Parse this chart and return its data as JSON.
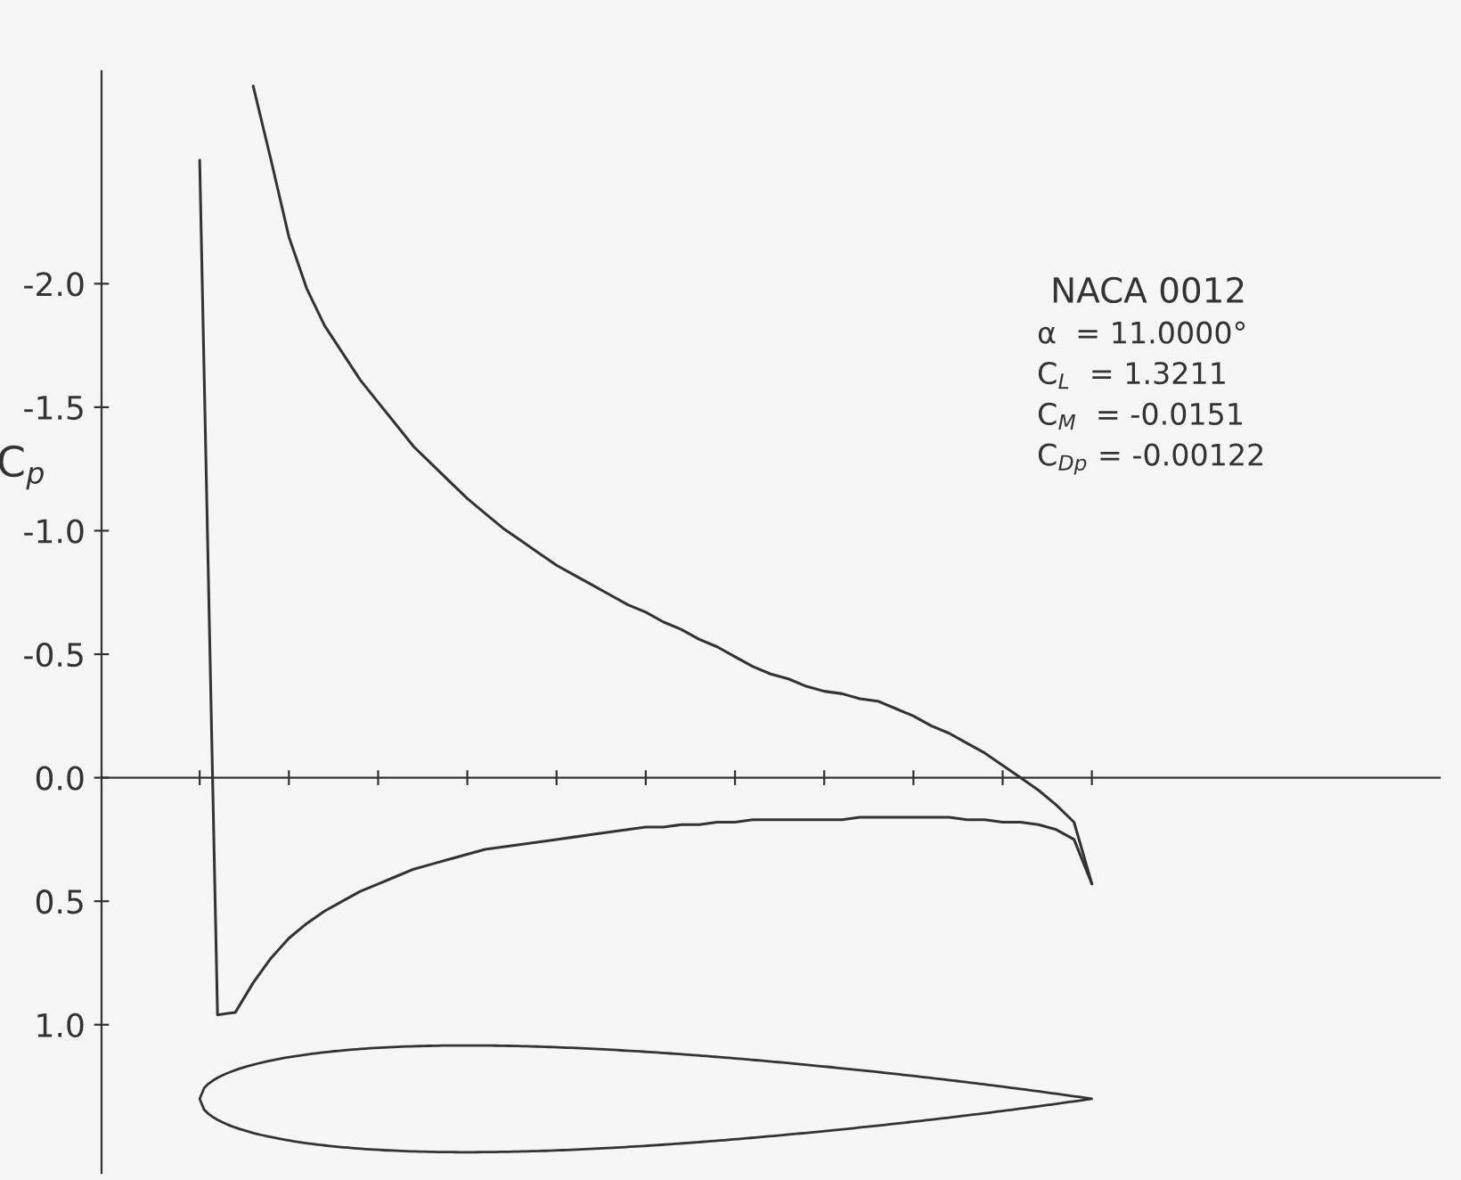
{
  "chart_data": {
    "type": "line",
    "ylabel": "C$_{p}$",
    "annotations": [
      "NACA 0012",
      "α  = 11.0000°",
      "C$_{L}$  = 1.3211",
      "C$_{M}$  = -0.0151",
      "C$_{Dp}$ = -0.00122"
    ],
    "categories": [
      null,
      null,
      null,
      null,
      null,
      null,
      null,
      null,
      null,
      null,
      null,
      null,
      null,
      null,
      null,
      null,
      null,
      null,
      null,
      null,
      null,
      null,
      null,
      null,
      null,
      null,
      null,
      null,
      null,
      null,
      null,
      null,
      null,
      null,
      null,
      null,
      null,
      null,
      null,
      null,
      null,
      null,
      null,
      null,
      null,
      null,
      null,
      null,
      null,
      null,
      null,
      null,
      null,
      null,
      null,
      null,
      null,
      null,
      null,
      null,
      null,
      null,
      null,
      null,
      null,
      null,
      null,
      null,
      null,
      null,
      null,
      null,
      null,
      null,
      null
    ],
    "series": [
      {
        "color": "#333333",
        "values": [
          null,
          null,
          null,
          null,
          null,
          null,
          null,
          null,
          -2.8,
          -2.5,
          -2.19,
          -1.98,
          -1.83,
          -1.72,
          -1.61,
          -1.52,
          -1.43,
          -1.34,
          -1.27,
          -1.2,
          -1.13,
          -1.07,
          -1.01,
          -0.96,
          -0.91,
          -0.86,
          -0.82,
          -0.78,
          -0.74,
          -0.7,
          -0.67,
          -0.63,
          -0.6,
          -0.56,
          -0.53,
          -0.49,
          -0.45,
          -0.42,
          -0.4,
          -0.37,
          -0.35,
          -0.34,
          -0.32,
          -0.31,
          -0.28,
          -0.25,
          -0.21,
          -0.18,
          -0.14,
          -0.1,
          -0.05,
          0.0,
          0.05,
          0.11,
          0.18,
          0.43,
          null,
          null,
          null,
          null,
          null,
          null,
          null,
          null,
          null,
          null,
          null,
          null,
          null,
          null,
          null,
          null,
          null,
          null,
          null
        ]
      },
      {
        "color": "#333333",
        "values": [
          null,
          null,
          null,
          null,
          null,
          -2.5,
          0.96,
          0.95,
          0.83,
          0.73,
          0.65,
          0.59,
          0.54,
          0.5,
          0.46,
          0.43,
          0.4,
          0.37,
          0.35,
          0.33,
          0.31,
          0.29,
          0.28,
          0.27,
          0.26,
          0.25,
          0.24,
          0.23,
          0.22,
          0.21,
          0.2,
          0.2,
          0.19,
          0.19,
          0.18,
          0.18,
          0.17,
          0.17,
          0.17,
          0.17,
          0.17,
          0.17,
          0.16,
          0.16,
          0.16,
          0.16,
          0.16,
          0.16,
          0.17,
          0.17,
          0.18,
          0.18,
          0.19,
          0.21,
          0.25,
          0.43,
          null,
          null,
          null,
          null,
          null,
          null,
          null,
          null,
          null,
          null,
          null,
          null,
          null,
          null,
          null,
          null,
          null,
          null,
          null
        ]
      }
    ],
    "ylim": [
      1.6,
      -2.86
    ],
    "yticks": [
      {
        "value": -2.0,
        "label": "-2.0"
      },
      {
        "value": -1.5,
        "label": "-1.5"
      },
      {
        "value": -1.0,
        "label": "-1.0"
      },
      {
        "value": -0.5,
        "label": "-0.5"
      },
      {
        "value": 0.0,
        "label": "0.0"
      },
      {
        "value": 0.5,
        "label": "0.5"
      },
      {
        "value": 1.0,
        "label": "1.0"
      }
    ],
    "tick_labels": "y",
    "legend": false,
    "marker": "none",
    "line_style": "solid"
  }
}
